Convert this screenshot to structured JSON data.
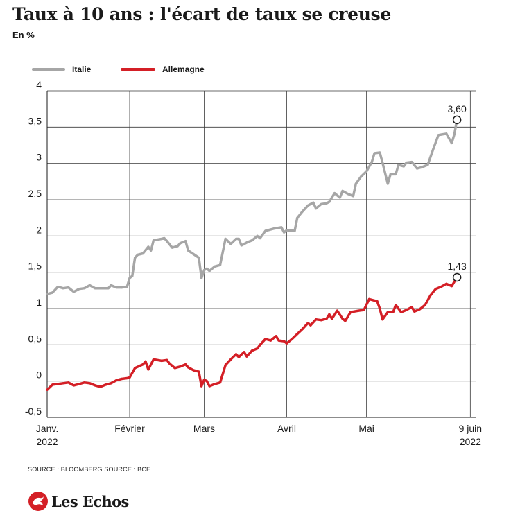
{
  "title": "Taux à 10 ans : l'écart de taux se creuse",
  "subtitle": "En %",
  "source": "SOURCE : BLOOMBERG   SOURCE : BCE",
  "brand": {
    "name": "Les Echos",
    "color": "#d41f26"
  },
  "chart_data": {
    "type": "line",
    "title": "Taux à 10 ans : l'écart de taux se creuse",
    "subtitle": "En %",
    "ylim": [
      -0.5,
      4
    ],
    "yticks": [
      -0.5,
      0,
      0.5,
      1,
      1.5,
      2,
      2.5,
      3,
      3.5,
      4
    ],
    "ytick_labels": [
      "-0,5",
      "0",
      "0,5",
      "1",
      "1,5",
      "2",
      "2,5",
      "3",
      "3,5",
      "4"
    ],
    "xlim": [
      "2022-01-01",
      "2022-06-11"
    ],
    "xticks": [
      {
        "date": "2022-01-01",
        "label": "Janv.",
        "sublabel": "2022"
      },
      {
        "date": "2022-02-01",
        "label": "Février",
        "sublabel": ""
      },
      {
        "date": "2022-03-01",
        "label": "Mars",
        "sublabel": ""
      },
      {
        "date": "2022-04-01",
        "label": "Avril",
        "sublabel": ""
      },
      {
        "date": "2022-05-01",
        "label": "Mai",
        "sublabel": ""
      },
      {
        "date": "2022-06-09",
        "label": "9 juin",
        "sublabel": "2022"
      }
    ],
    "grid": true,
    "legend_position": "top-left",
    "series": [
      {
        "name": "Italie",
        "color": "#a6a6a6",
        "end_label": "3,60",
        "points": [
          [
            "2022-01-01",
            1.2
          ],
          [
            "2022-01-03",
            1.22
          ],
          [
            "2022-01-05",
            1.3
          ],
          [
            "2022-01-07",
            1.28
          ],
          [
            "2022-01-09",
            1.29
          ],
          [
            "2022-01-11",
            1.23
          ],
          [
            "2022-01-13",
            1.27
          ],
          [
            "2022-01-15",
            1.28
          ],
          [
            "2022-01-17",
            1.32
          ],
          [
            "2022-01-19",
            1.28
          ],
          [
            "2022-01-21",
            1.28
          ],
          [
            "2022-01-24",
            1.28
          ],
          [
            "2022-01-25",
            1.32
          ],
          [
            "2022-01-27",
            1.29
          ],
          [
            "2022-01-29",
            1.29
          ],
          [
            "2022-01-31",
            1.3
          ],
          [
            "2022-02-01",
            1.42
          ],
          [
            "2022-02-02",
            1.45
          ],
          [
            "2022-02-03",
            1.7
          ],
          [
            "2022-02-04",
            1.74
          ],
          [
            "2022-02-06",
            1.76
          ],
          [
            "2022-02-08",
            1.85
          ],
          [
            "2022-02-09",
            1.8
          ],
          [
            "2022-02-10",
            1.94
          ],
          [
            "2022-02-13",
            1.96
          ],
          [
            "2022-02-14",
            1.97
          ],
          [
            "2022-02-15",
            1.93
          ],
          [
            "2022-02-17",
            1.84
          ],
          [
            "2022-02-19",
            1.86
          ],
          [
            "2022-02-20",
            1.9
          ],
          [
            "2022-02-22",
            1.93
          ],
          [
            "2022-02-23",
            1.8
          ],
          [
            "2022-02-25",
            1.75
          ],
          [
            "2022-02-27",
            1.7
          ],
          [
            "2022-02-28",
            1.42
          ],
          [
            "2022-03-01",
            1.53
          ],
          [
            "2022-03-02",
            1.55
          ],
          [
            "2022-03-03",
            1.52
          ],
          [
            "2022-03-05",
            1.58
          ],
          [
            "2022-03-07",
            1.6
          ],
          [
            "2022-03-09",
            1.96
          ],
          [
            "2022-03-11",
            1.89
          ],
          [
            "2022-03-13",
            1.96
          ],
          [
            "2022-03-14",
            1.96
          ],
          [
            "2022-03-15",
            1.87
          ],
          [
            "2022-03-17",
            1.91
          ],
          [
            "2022-03-19",
            1.94
          ],
          [
            "2022-03-21",
            2.0
          ],
          [
            "2022-03-22",
            1.97
          ],
          [
            "2022-03-24",
            2.07
          ],
          [
            "2022-03-27",
            2.1
          ],
          [
            "2022-03-30",
            2.12
          ],
          [
            "2022-03-31",
            2.05
          ],
          [
            "2022-04-01",
            2.08
          ],
          [
            "2022-04-04",
            2.07
          ],
          [
            "2022-04-05",
            2.25
          ],
          [
            "2022-04-07",
            2.34
          ],
          [
            "2022-04-09",
            2.42
          ],
          [
            "2022-04-11",
            2.46
          ],
          [
            "2022-04-12",
            2.38
          ],
          [
            "2022-04-14",
            2.44
          ],
          [
            "2022-04-16",
            2.45
          ],
          [
            "2022-04-17",
            2.47
          ],
          [
            "2022-04-19",
            2.59
          ],
          [
            "2022-04-21",
            2.53
          ],
          [
            "2022-04-22",
            2.62
          ],
          [
            "2022-04-24",
            2.58
          ],
          [
            "2022-04-26",
            2.55
          ],
          [
            "2022-04-27",
            2.72
          ],
          [
            "2022-04-29",
            2.82
          ],
          [
            "2022-05-01",
            2.89
          ],
          [
            "2022-05-03",
            3.02
          ],
          [
            "2022-05-04",
            3.14
          ],
          [
            "2022-05-06",
            3.15
          ],
          [
            "2022-05-07",
            3.01
          ],
          [
            "2022-05-09",
            2.72
          ],
          [
            "2022-05-10",
            2.85
          ],
          [
            "2022-05-12",
            2.85
          ],
          [
            "2022-05-13",
            2.98
          ],
          [
            "2022-05-15",
            2.96
          ],
          [
            "2022-05-16",
            3.01
          ],
          [
            "2022-05-18",
            3.02
          ],
          [
            "2022-05-20",
            2.93
          ],
          [
            "2022-05-22",
            2.95
          ],
          [
            "2022-05-24",
            2.98
          ],
          [
            "2022-05-26",
            3.19
          ],
          [
            "2022-05-28",
            3.39
          ],
          [
            "2022-05-31",
            3.41
          ],
          [
            "2022-06-02",
            3.28
          ],
          [
            "2022-06-03",
            3.4
          ],
          [
            "2022-06-04",
            3.6
          ]
        ]
      },
      {
        "name": "Allemagne",
        "color": "#d41f26",
        "end_label": "1,43",
        "points": [
          [
            "2022-01-01",
            -0.12
          ],
          [
            "2022-01-03",
            -0.05
          ],
          [
            "2022-01-05",
            -0.04
          ],
          [
            "2022-01-07",
            -0.03
          ],
          [
            "2022-01-09",
            -0.02
          ],
          [
            "2022-01-11",
            -0.06
          ],
          [
            "2022-01-13",
            -0.04
          ],
          [
            "2022-01-15",
            -0.02
          ],
          [
            "2022-01-17",
            -0.03
          ],
          [
            "2022-01-19",
            -0.06
          ],
          [
            "2022-01-21",
            -0.08
          ],
          [
            "2022-01-23",
            -0.05
          ],
          [
            "2022-01-25",
            -0.03
          ],
          [
            "2022-01-27",
            0.01
          ],
          [
            "2022-01-29",
            0.03
          ],
          [
            "2022-01-31",
            0.04
          ],
          [
            "2022-02-01",
            0.05
          ],
          [
            "2022-02-03",
            0.18
          ],
          [
            "2022-02-06",
            0.23
          ],
          [
            "2022-02-07",
            0.27
          ],
          [
            "2022-02-08",
            0.16
          ],
          [
            "2022-02-10",
            0.3
          ],
          [
            "2022-02-13",
            0.28
          ],
          [
            "2022-02-15",
            0.29
          ],
          [
            "2022-02-16",
            0.24
          ],
          [
            "2022-02-18",
            0.18
          ],
          [
            "2022-02-20",
            0.2
          ],
          [
            "2022-02-22",
            0.23
          ],
          [
            "2022-02-23",
            0.19
          ],
          [
            "2022-02-25",
            0.15
          ],
          [
            "2022-02-27",
            0.13
          ],
          [
            "2022-02-28",
            -0.07
          ],
          [
            "2022-03-01",
            0.02
          ],
          [
            "2022-03-02",
            0.0
          ],
          [
            "2022-03-03",
            -0.07
          ],
          [
            "2022-03-05",
            -0.04
          ],
          [
            "2022-03-07",
            -0.02
          ],
          [
            "2022-03-09",
            0.22
          ],
          [
            "2022-03-11",
            0.3
          ],
          [
            "2022-03-13",
            0.37
          ],
          [
            "2022-03-14",
            0.33
          ],
          [
            "2022-03-16",
            0.4
          ],
          [
            "2022-03-17",
            0.34
          ],
          [
            "2022-03-19",
            0.42
          ],
          [
            "2022-03-21",
            0.45
          ],
          [
            "2022-03-22",
            0.5
          ],
          [
            "2022-03-24",
            0.58
          ],
          [
            "2022-03-26",
            0.56
          ],
          [
            "2022-03-28",
            0.62
          ],
          [
            "2022-03-29",
            0.56
          ],
          [
            "2022-03-31",
            0.55
          ],
          [
            "2022-04-01",
            0.52
          ],
          [
            "2022-04-03",
            0.58
          ],
          [
            "2022-04-05",
            0.65
          ],
          [
            "2022-04-07",
            0.72
          ],
          [
            "2022-04-09",
            0.8
          ],
          [
            "2022-04-10",
            0.77
          ],
          [
            "2022-04-12",
            0.85
          ],
          [
            "2022-04-14",
            0.84
          ],
          [
            "2022-04-16",
            0.86
          ],
          [
            "2022-04-17",
            0.92
          ],
          [
            "2022-04-18",
            0.86
          ],
          [
            "2022-04-20",
            0.97
          ],
          [
            "2022-04-22",
            0.86
          ],
          [
            "2022-04-23",
            0.83
          ],
          [
            "2022-04-25",
            0.95
          ],
          [
            "2022-04-28",
            0.97
          ],
          [
            "2022-04-30",
            0.98
          ],
          [
            "2022-05-02",
            1.13
          ],
          [
            "2022-05-05",
            1.1
          ],
          [
            "2022-05-06",
            1.0
          ],
          [
            "2022-05-07",
            0.85
          ],
          [
            "2022-05-09",
            0.95
          ],
          [
            "2022-05-11",
            0.95
          ],
          [
            "2022-05-12",
            1.05
          ],
          [
            "2022-05-14",
            0.95
          ],
          [
            "2022-05-16",
            0.98
          ],
          [
            "2022-05-18",
            1.02
          ],
          [
            "2022-05-19",
            0.96
          ],
          [
            "2022-05-21",
            0.99
          ],
          [
            "2022-05-23",
            1.05
          ],
          [
            "2022-05-25",
            1.18
          ],
          [
            "2022-05-27",
            1.27
          ],
          [
            "2022-05-29",
            1.3
          ],
          [
            "2022-05-31",
            1.34
          ],
          [
            "2022-06-02",
            1.31
          ],
          [
            "2022-06-04",
            1.43
          ]
        ]
      }
    ]
  }
}
